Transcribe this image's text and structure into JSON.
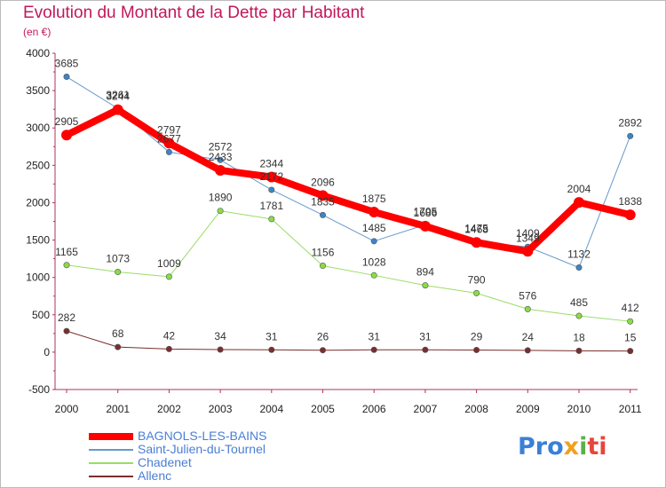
{
  "title": "Evolution du Montant de la Dette par Habitant",
  "subtitle": "(en €)",
  "brand": [
    "Pro",
    "x",
    "i",
    "ti"
  ],
  "chart_data": {
    "type": "line",
    "x": [
      "2000",
      "2001",
      "2002",
      "2003",
      "2004",
      "2005",
      "2006",
      "2007",
      "2008",
      "2009",
      "2010",
      "2011"
    ],
    "ylim": [
      -500,
      4000
    ],
    "yticks": [
      "-500",
      "0",
      "500",
      "1000",
      "1500",
      "2000",
      "2500",
      "3000",
      "3500",
      "4000"
    ],
    "ytick_values": [
      -500,
      0,
      500,
      1000,
      1500,
      2000,
      2500,
      3000,
      3500,
      4000
    ],
    "grid": false,
    "legend_position": "bottom-left",
    "series": [
      {
        "name": "BAGNOLS-LES-BAINS",
        "color": "#ff0000",
        "marker": "#ff0000",
        "width": 8,
        "values": [
          2905,
          3244,
          2797,
          2433,
          2344,
          2096,
          1875,
          1686,
          1468,
          1349,
          2004,
          1838
        ]
      },
      {
        "name": "Saint-Julien-du-Tournel",
        "color": "#6699cc",
        "marker": "#3a85c8",
        "width": 1,
        "values": [
          3685,
          3261,
          2677,
          2572,
          2172,
          1835,
          1485,
          1705,
          1475,
          1409,
          1132,
          2892
        ]
      },
      {
        "name": "Chadenet",
        "color": "#99dd66",
        "marker": "#88dd44",
        "width": 1,
        "values": [
          1165,
          1073,
          1009,
          1890,
          1781,
          1156,
          1028,
          894,
          790,
          576,
          485,
          412
        ]
      },
      {
        "name": "Allenc",
        "color": "#7a2e2e",
        "marker": "#7a2e2e",
        "width": 1,
        "values": [
          282,
          68,
          42,
          34,
          31,
          26,
          31,
          31,
          29,
          24,
          18,
          15
        ]
      }
    ]
  }
}
